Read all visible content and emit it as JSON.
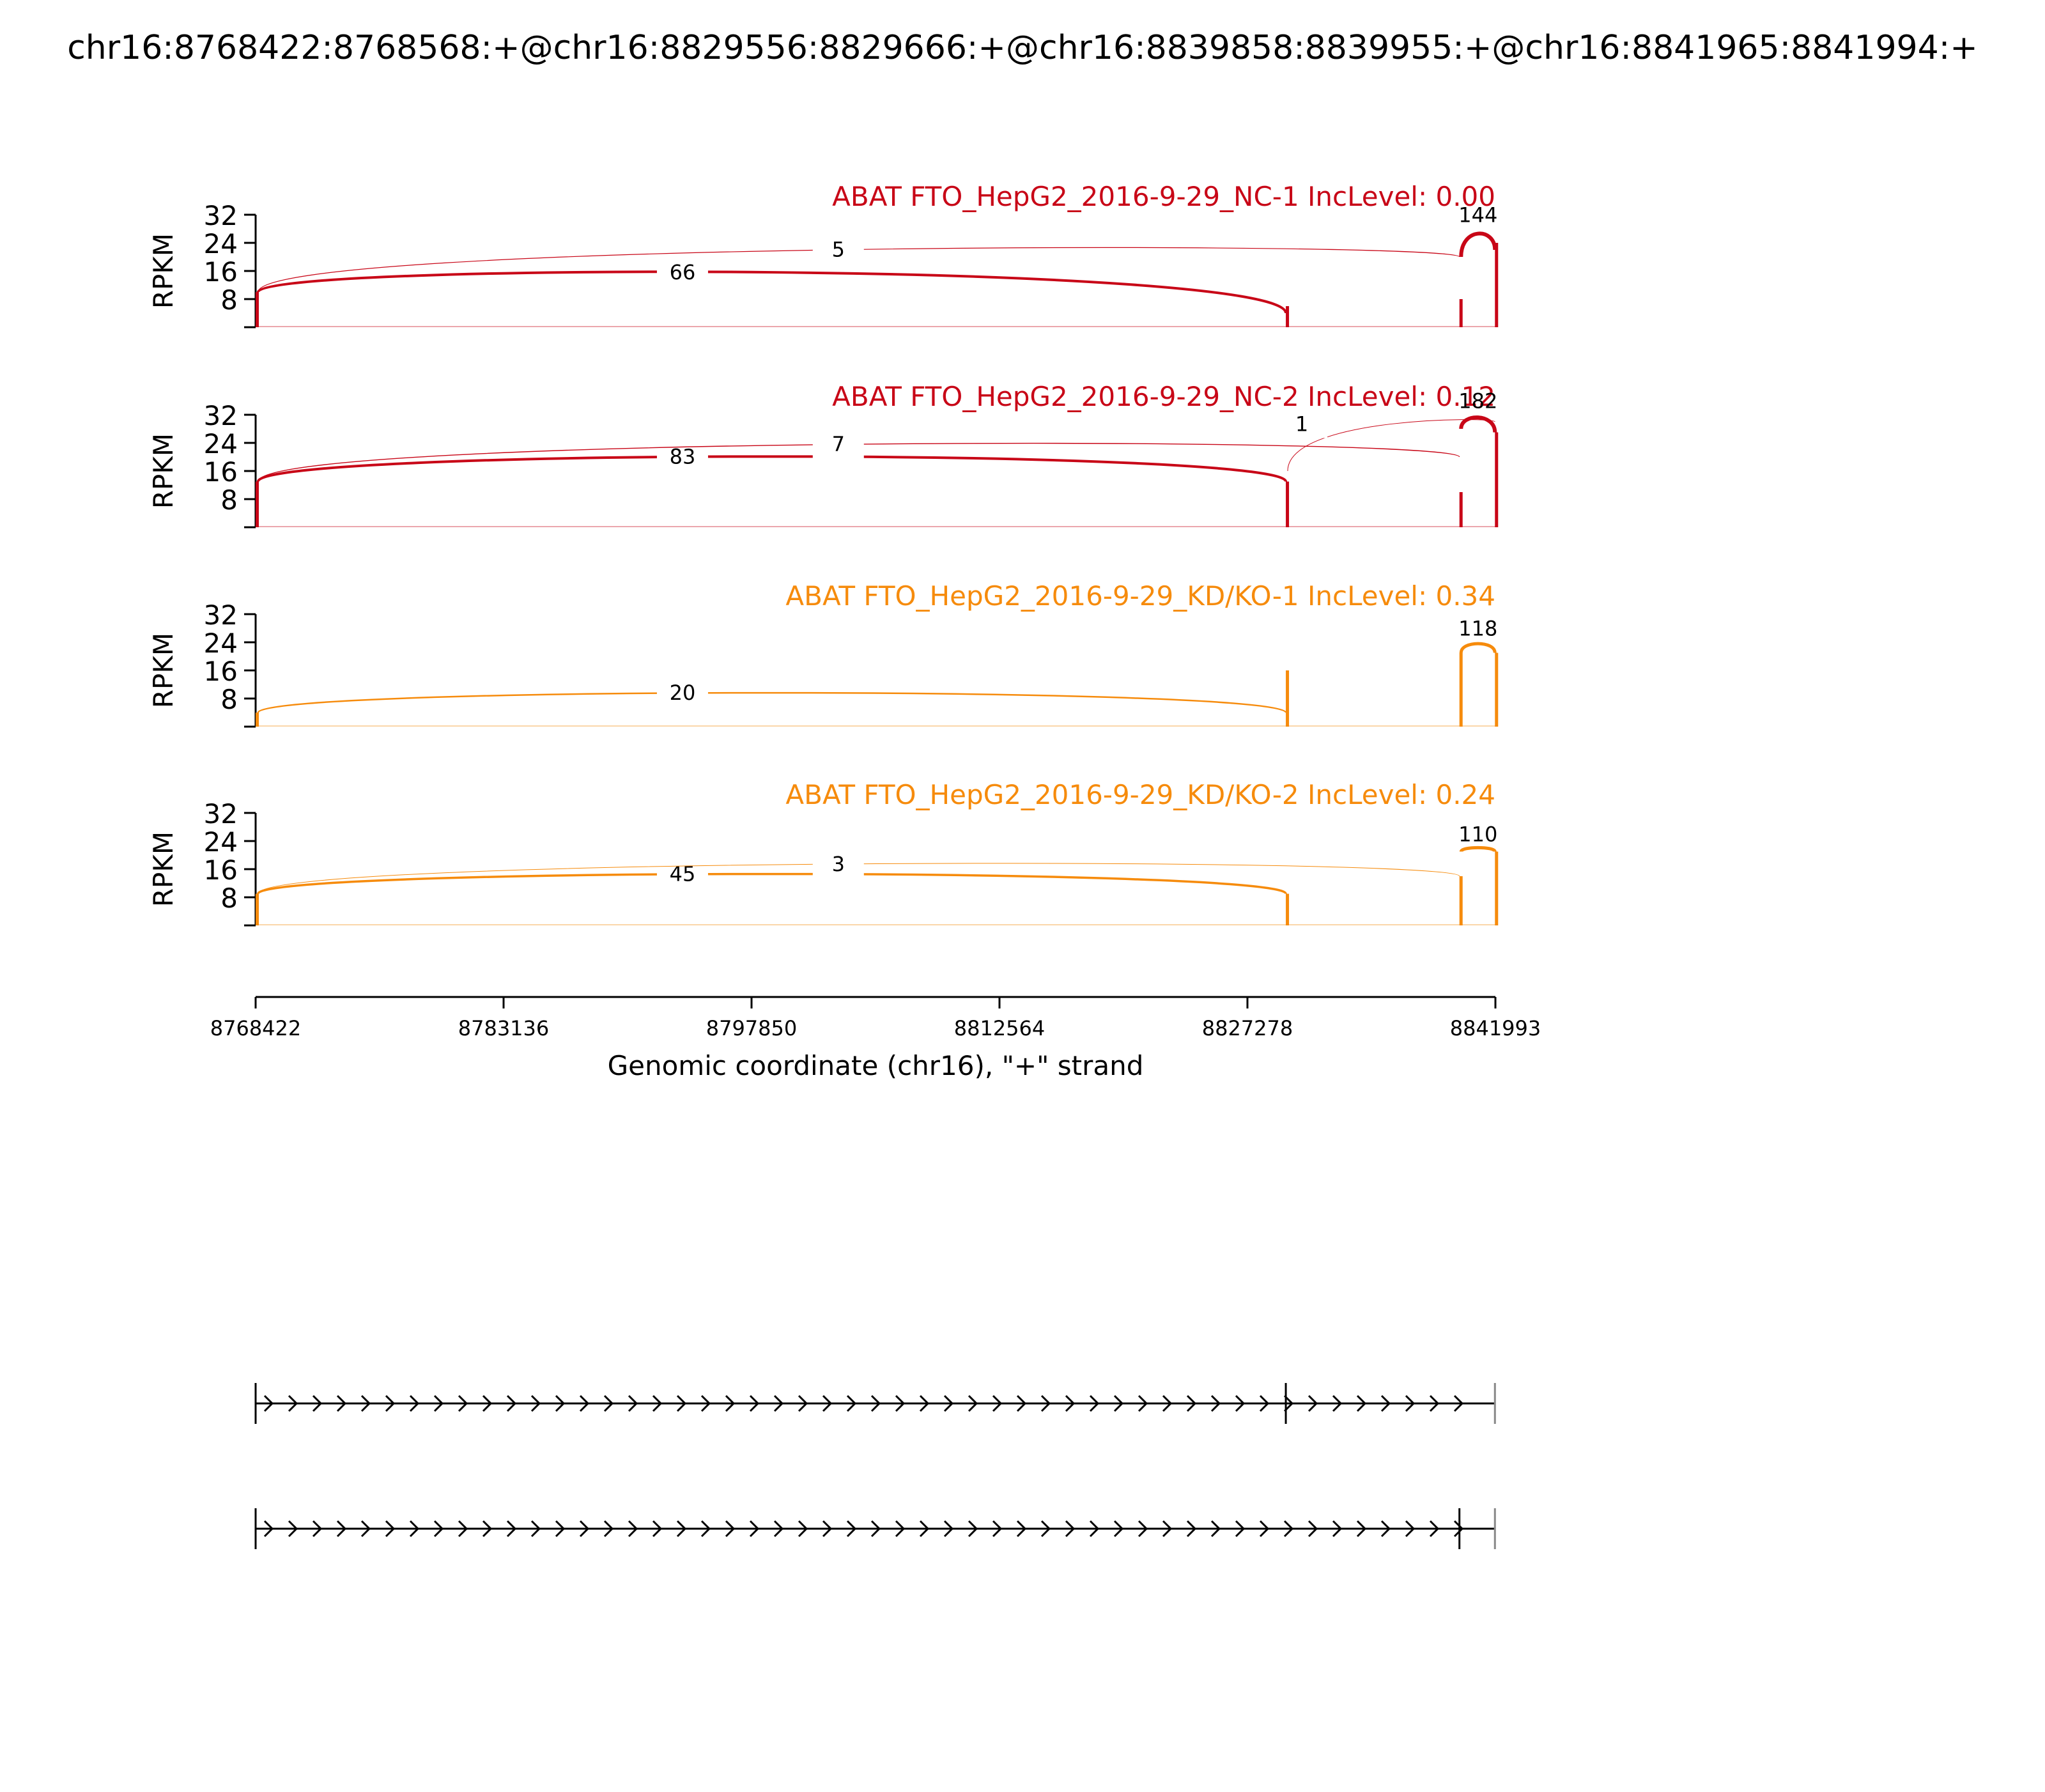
{
  "figure_title": "chr16:8768422:8768568:+@chr16:8829556:8829666:+@chr16:8839858:8839955:+@chr16:8841965:8841994:+",
  "colors": {
    "nc": "#c80617",
    "kd": "#f68b0c",
    "axis": "#000000",
    "label_bg": "#ffffff"
  },
  "chart_data": {
    "type": "sashimi",
    "xlim": [
      8768422,
      8841993
    ],
    "ylim": [
      0,
      32
    ],
    "ylabel": "RPKM",
    "yticks": [
      "8",
      "16",
      "24",
      "32"
    ],
    "xlabel": "Genomic coordinate (chr16), \"+\" strand",
    "xticks": [
      "8768422",
      "8783136",
      "8797850",
      "8812564",
      "8827278",
      "8841993"
    ],
    "tracks": [
      {
        "title": "ABAT FTO_HepG2_2016-9-29_NC-1 IncLevel: 0.00",
        "color_key": "nc",
        "exons": [
          {
            "start": 8768422,
            "end": 8768568,
            "height": 10
          },
          {
            "start": 8829556,
            "end": 8829666,
            "height": 6
          },
          {
            "start": 8839858,
            "end": 8839955,
            "height": 8
          },
          {
            "start": 8841965,
            "end": 8841994,
            "height": 24
          }
        ],
        "junctions": [
          {
            "start": 8768568,
            "end": 8829556,
            "count": "66",
            "peak": 18.5,
            "width": 4.0,
            "base": 10,
            "base_end": 4
          },
          {
            "start": 8768568,
            "end": 8839858,
            "count": "5",
            "peak": 24.5,
            "width": 1.2,
            "base": 10,
            "base_end": 20
          },
          {
            "start": 8839955,
            "end": 8841965,
            "count": "144",
            "peak": 28.5,
            "width": 6.0,
            "base": 20,
            "base_end": 22,
            "label_above": true
          }
        ]
      },
      {
        "title": "ABAT FTO_HepG2_2016-9-29_NC-2 IncLevel: 0.12",
        "color_key": "nc",
        "exons": [
          {
            "start": 8768422,
            "end": 8768568,
            "height": 13
          },
          {
            "start": 8829556,
            "end": 8829666,
            "height": 13
          },
          {
            "start": 8839858,
            "end": 8839955,
            "height": 10
          },
          {
            "start": 8841965,
            "end": 8841994,
            "height": 27
          }
        ],
        "junctions": [
          {
            "start": 8768568,
            "end": 8829556,
            "count": "83",
            "peak": 22.5,
            "width": 4.0,
            "base": 13,
            "base_end": 13
          },
          {
            "start": 8768568,
            "end": 8839858,
            "count": "7",
            "peak": 26.0,
            "width": 1.4,
            "base": 13,
            "base_end": 20
          },
          {
            "start": 8829666,
            "end": 8841965,
            "count": "1",
            "peak": 31.5,
            "width": 1.0,
            "base": 16,
            "base_end": 30
          },
          {
            "start": 8839955,
            "end": 8841965,
            "count": "182",
            "peak": 32.5,
            "width": 6.0,
            "base": 28,
            "base_end": 27,
            "label_above": true
          }
        ]
      },
      {
        "title": "ABAT FTO_HepG2_2016-9-29_KD/KO-1 IncLevel: 0.34",
        "color_key": "kd",
        "exons": [
          {
            "start": 8768422,
            "end": 8768568,
            "height": 4
          },
          {
            "start": 8829556,
            "end": 8829666,
            "height": 16
          },
          {
            "start": 8839858,
            "end": 8839955,
            "height": 21
          },
          {
            "start": 8841965,
            "end": 8841994,
            "height": 21
          }
        ],
        "junctions": [
          {
            "start": 8768568,
            "end": 8829556,
            "count": "20",
            "peak": 11.5,
            "width": 2.5,
            "base": 4,
            "base_end": 4
          },
          {
            "start": 8839955,
            "end": 8841965,
            "count": "118",
            "peak": 24.5,
            "width": 5.0,
            "base": 21,
            "base_end": 21,
            "label_above": true
          }
        ]
      },
      {
        "title": "ABAT FTO_HepG2_2016-9-29_KD/KO-2 IncLevel: 0.24",
        "color_key": "kd",
        "exons": [
          {
            "start": 8768422,
            "end": 8768568,
            "height": 9
          },
          {
            "start": 8829556,
            "end": 8829666,
            "height": 9
          },
          {
            "start": 8839858,
            "end": 8839955,
            "height": 14
          },
          {
            "start": 8841965,
            "end": 8841994,
            "height": 21
          }
        ],
        "junctions": [
          {
            "start": 8768568,
            "end": 8829556,
            "count": "45",
            "peak": 16.5,
            "width": 3.5,
            "base": 9,
            "base_end": 9
          },
          {
            "start": 8768568,
            "end": 8839858,
            "count": "3",
            "peak": 19.5,
            "width": 1.0,
            "base": 9,
            "base_end": 14
          },
          {
            "start": 8839955,
            "end": 8841965,
            "count": "110",
            "peak": 22.5,
            "width": 5.0,
            "base": 21,
            "base_end": 21,
            "label_above": true
          }
        ]
      }
    ],
    "isoforms": [
      {
        "exon_starts": [
          8768422,
          8829556,
          8841965
        ]
      },
      {
        "exon_starts": [
          8768422,
          8839858,
          8841965
        ]
      }
    ]
  }
}
